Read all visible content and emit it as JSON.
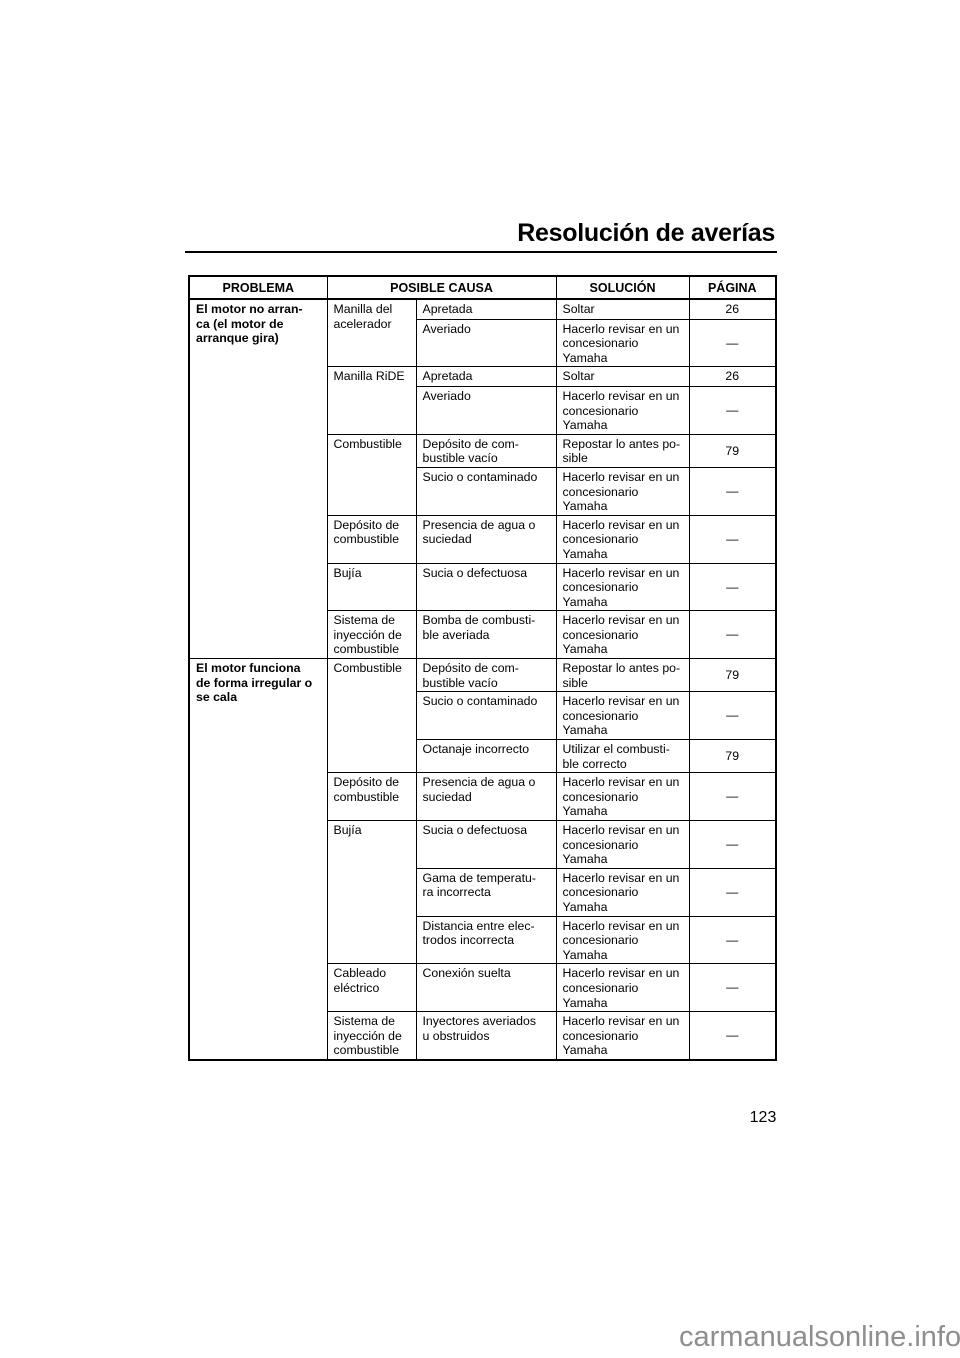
{
  "page": {
    "title": "Resolución de averías",
    "page_number": "123",
    "watermark": "carmanualsonline.info"
  },
  "table": {
    "headers": {
      "problema": "PROBLEMA",
      "posible_causa": "POSIBLE CAUSA",
      "solucion": "SOLUCIÓN",
      "pagina": "PÁGINA"
    },
    "sections": [
      {
        "problem": "El motor no arran-\nca (el motor de\narranque gira)",
        "rows": [
          {
            "component": "Manilla del\nacelerador",
            "component_rowspan": 2,
            "cause": "Apretada",
            "solution": "Soltar",
            "page": "26"
          },
          {
            "cause": "Averiado",
            "solution": "Hacerlo revisar en un\nconcesionario\nYamaha",
            "page": "—"
          },
          {
            "component": "Manilla RiDE",
            "component_rowspan": 2,
            "cause": "Apretada",
            "solution": "Soltar",
            "page": "26"
          },
          {
            "cause": "Averiado",
            "solution": "Hacerlo revisar en un\nconcesionario\nYamaha",
            "page": "—"
          },
          {
            "component": "Combustible",
            "component_rowspan": 2,
            "cause": "Depósito de com-\nbustible vacío",
            "solution": "Repostar lo antes po-\nsible",
            "page": "79"
          },
          {
            "cause": "Sucio o contaminado",
            "solution": "Hacerlo revisar en un\nconcesionario\nYamaha",
            "page": "—"
          },
          {
            "component": "Depósito de\ncombustible",
            "component_rowspan": 1,
            "cause": "Presencia de agua o\nsuciedad",
            "solution": "Hacerlo revisar en un\nconcesionario\nYamaha",
            "page": "—"
          },
          {
            "component": "Bujía",
            "component_rowspan": 1,
            "cause": "Sucia o defectuosa",
            "solution": "Hacerlo revisar en un\nconcesionario\nYamaha",
            "page": "—"
          },
          {
            "component": "Sistema de\ninyección de\ncombustible",
            "component_rowspan": 1,
            "cause": "Bomba de combusti-\nble averiada",
            "solution": "Hacerlo revisar en un\nconcesionario\nYamaha",
            "page": "—"
          }
        ]
      },
      {
        "problem": "El motor funciona\nde forma irregular o\nse cala",
        "rows": [
          {
            "component": "Combustible",
            "component_rowspan": 3,
            "cause": "Depósito de com-\nbustible vacío",
            "solution": "Repostar lo antes po-\nsible",
            "page": "79"
          },
          {
            "cause": "Sucio o contaminado",
            "solution": "Hacerlo revisar en un\nconcesionario\nYamaha",
            "page": "—"
          },
          {
            "cause": "Octanaje incorrecto",
            "solution": "Utilizar el combusti-\nble correcto",
            "page": "79"
          },
          {
            "component": "Depósito de\ncombustible",
            "component_rowspan": 1,
            "cause": "Presencia de agua o\nsuciedad",
            "solution": "Hacerlo revisar en un\nconcesionario\nYamaha",
            "page": "—"
          },
          {
            "component": "Bujía",
            "component_rowspan": 3,
            "cause": "Sucia o defectuosa",
            "solution": "Hacerlo revisar en un\nconcesionario\nYamaha",
            "page": "—"
          },
          {
            "cause": "Gama de temperatu-\nra incorrecta",
            "solution": "Hacerlo revisar en un\nconcesionario\nYamaha",
            "page": "—"
          },
          {
            "cause": "Distancia entre elec-\ntrodos incorrecta",
            "solution": "Hacerlo revisar en un\nconcesionario\nYamaha",
            "page": "—"
          },
          {
            "component": "Cableado\neléctrico",
            "component_rowspan": 1,
            "cause": "Conexión suelta",
            "solution": "Hacerlo revisar en un\nconcesionario\nYamaha",
            "page": "—"
          },
          {
            "component": "Sistema de\ninyección de\ncombustible",
            "component_rowspan": 1,
            "cause": "Inyectores averiados\nu obstruidos",
            "solution": "Hacerlo revisar en un\nconcesionario\nYamaha",
            "page": "—"
          }
        ]
      }
    ]
  }
}
